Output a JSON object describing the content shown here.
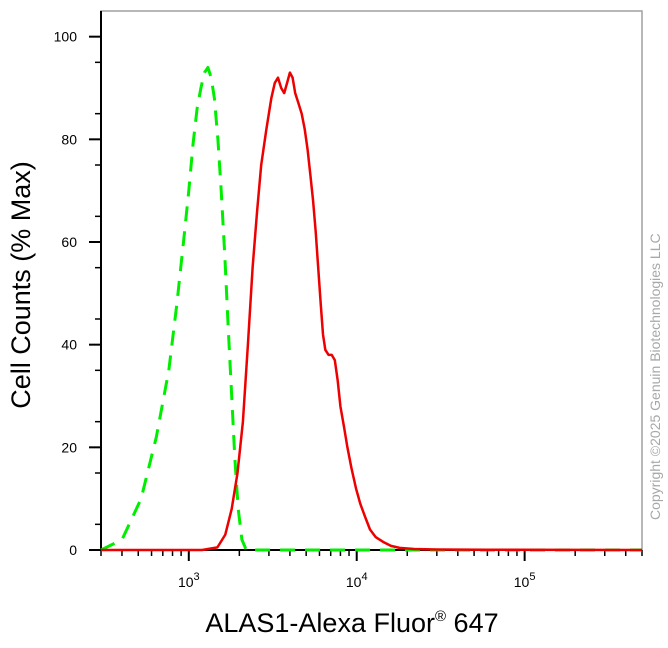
{
  "chart_data": {
    "type": "line",
    "title": "",
    "xlabel": "ALAS1-Alexa Fluor",
    "xlabel_super": "®",
    "xlabel_suffix": " 647",
    "ylabel": "Cell Counts (% Max)",
    "x_scale": "log",
    "xlim": [
      300,
      500000
    ],
    "ylim": [
      0,
      105
    ],
    "y_ticks": [
      0,
      20,
      40,
      60,
      80,
      100
    ],
    "y_tick_labels": [
      "0",
      "20",
      "40",
      "60",
      "80",
      "100"
    ],
    "x_ticks": [
      1000,
      10000,
      100000
    ],
    "x_tick_labels": [
      {
        "base": "10",
        "exp": "3"
      },
      {
        "base": "10",
        "exp": "4"
      },
      {
        "base": "10",
        "exp": "5"
      }
    ],
    "grid": false,
    "legend": "none",
    "series": [
      {
        "color": "#00ee00",
        "style": "dashed",
        "points": [
          [
            300,
            0
          ],
          [
            400,
            2
          ],
          [
            520,
            10
          ],
          [
            640,
            22
          ],
          [
            760,
            35
          ],
          [
            850,
            48
          ],
          [
            930,
            60
          ],
          [
            1000,
            70
          ],
          [
            1060,
            79
          ],
          [
            1120,
            86
          ],
          [
            1180,
            90
          ],
          [
            1240,
            93
          ],
          [
            1300,
            94
          ],
          [
            1360,
            92
          ],
          [
            1420,
            88
          ],
          [
            1490,
            80
          ],
          [
            1560,
            70
          ],
          [
            1640,
            57
          ],
          [
            1720,
            43
          ],
          [
            1800,
            30
          ],
          [
            1880,
            18
          ],
          [
            1970,
            8
          ],
          [
            2070,
            2
          ],
          [
            2200,
            0
          ],
          [
            3000,
            0
          ],
          [
            500000,
            0
          ]
        ]
      },
      {
        "color": "#ee0000",
        "style": "solid",
        "points": [
          [
            300,
            0
          ],
          [
            1200,
            0
          ],
          [
            1480,
            0.5
          ],
          [
            1650,
            3
          ],
          [
            1800,
            8
          ],
          [
            1950,
            15
          ],
          [
            2100,
            25
          ],
          [
            2250,
            40
          ],
          [
            2400,
            55
          ],
          [
            2550,
            66
          ],
          [
            2700,
            75
          ],
          [
            2900,
            82
          ],
          [
            3100,
            88
          ],
          [
            3250,
            91
          ],
          [
            3400,
            92
          ],
          [
            3550,
            90
          ],
          [
            3700,
            89
          ],
          [
            3850,
            91
          ],
          [
            4000,
            93
          ],
          [
            4150,
            92
          ],
          [
            4300,
            89
          ],
          [
            4500,
            87
          ],
          [
            4700,
            85
          ],
          [
            4900,
            82
          ],
          [
            5100,
            78
          ],
          [
            5300,
            73
          ],
          [
            5500,
            68
          ],
          [
            5700,
            62
          ],
          [
            5900,
            55
          ],
          [
            6100,
            48
          ],
          [
            6300,
            42
          ],
          [
            6500,
            39
          ],
          [
            6800,
            38
          ],
          [
            7100,
            38
          ],
          [
            7400,
            37
          ],
          [
            7700,
            33
          ],
          [
            8000,
            28
          ],
          [
            8400,
            24
          ],
          [
            8800,
            20
          ],
          [
            9300,
            16
          ],
          [
            9900,
            12
          ],
          [
            10500,
            9
          ],
          [
            11200,
            6.5
          ],
          [
            12000,
            4
          ],
          [
            13000,
            2.5
          ],
          [
            14500,
            1.5
          ],
          [
            16000,
            0.8
          ],
          [
            18000,
            0.4
          ],
          [
            22000,
            0.2
          ],
          [
            30000,
            0.1
          ],
          [
            60000,
            0.05
          ],
          [
            500000,
            0
          ]
        ]
      }
    ]
  },
  "watermark": "Copyright ©2025 Genuin Biotechnologies LLC",
  "colors": {
    "frame": "#a0a0a0",
    "axis": "#000000"
  }
}
